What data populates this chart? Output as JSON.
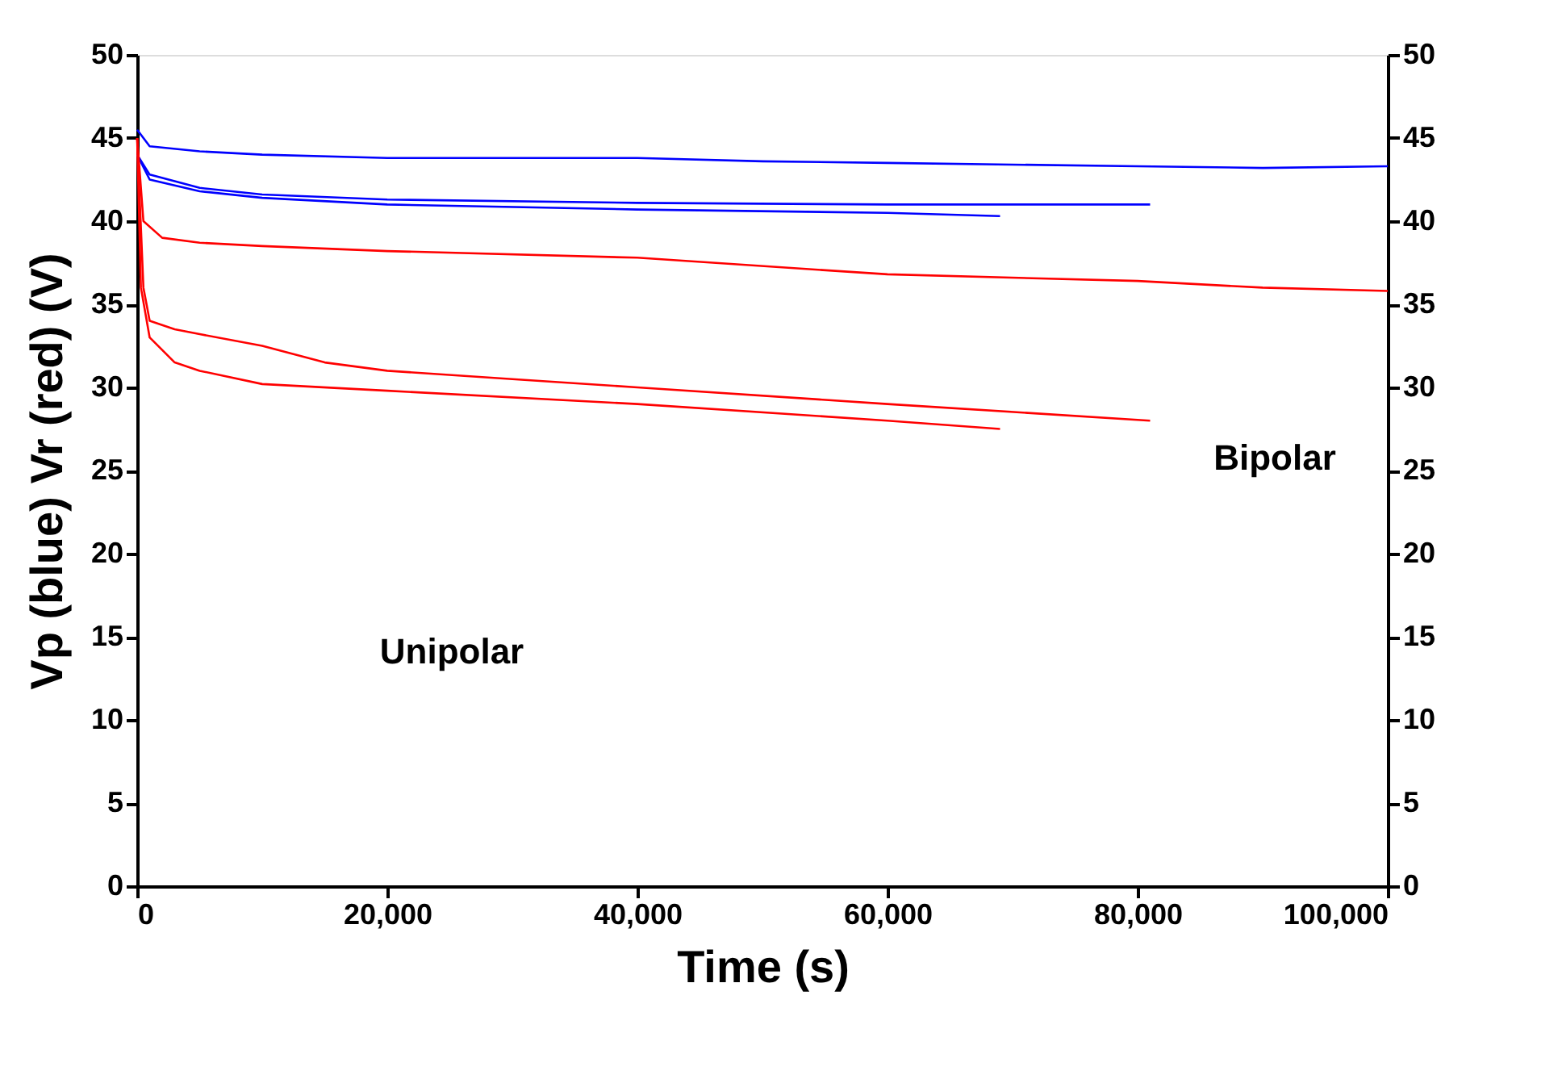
{
  "chart_data": {
    "type": "line",
    "xlabel": "Time (s)",
    "ylabel": "Vp (blue) Vr (red) (V)",
    "xlim": [
      0,
      100000
    ],
    "xticks": [
      0,
      {
        "value": 20000,
        "label": "20,000"
      },
      {
        "value": 40000,
        "label": "40,000"
      },
      {
        "value": 60000,
        "label": "60,000"
      },
      {
        "value": 80000,
        "label": "80,000"
      },
      {
        "value": 100000,
        "label": "100,000"
      }
    ],
    "ylim": [
      0,
      50
    ],
    "yticks": [
      0,
      5,
      10,
      15,
      20,
      25,
      30,
      35,
      40,
      45,
      50
    ],
    "y2lim": [
      0,
      50
    ],
    "y2ticks": [
      0,
      5,
      10,
      15,
      20,
      25,
      30,
      35,
      40,
      45,
      50
    ],
    "grid": false,
    "marker": "none",
    "line_style": "solid",
    "series": [
      {
        "color": "#0000ff",
        "x": [
          0,
          1000,
          5000,
          10000,
          20000,
          30000,
          40000,
          50000,
          60000,
          70000,
          80000,
          90000,
          100000
        ],
        "values": [
          45.5,
          44.5,
          44.2,
          44,
          43.8,
          43.8,
          43.8,
          43.6,
          43.5,
          43.4,
          43.3,
          43.2,
          43.3
        ]
      },
      {
        "color": "#0000ff",
        "x": [
          0,
          1000,
          5000,
          10000,
          20000,
          40000,
          60000,
          70000,
          81000
        ],
        "values": [
          44,
          42.8,
          42,
          41.6,
          41.3,
          41.1,
          41,
          41,
          41
        ]
      },
      {
        "color": "#0000ff",
        "x": [
          0,
          1000,
          5000,
          10000,
          20000,
          40000,
          60000,
          69000
        ],
        "values": [
          44,
          42.5,
          41.8,
          41.4,
          41,
          40.7,
          40.5,
          40.3
        ]
      },
      {
        "color": "#ff0000",
        "x": [
          0,
          500,
          2000,
          5000,
          10000,
          20000,
          40000,
          60000,
          80000,
          90000,
          100000
        ],
        "values": [
          45,
          40,
          39,
          38.7,
          38.5,
          38.2,
          37.8,
          36.8,
          36.4,
          36,
          35.8
        ]
      },
      {
        "color": "#ff0000",
        "x": [
          0,
          500,
          1000,
          3000,
          5000,
          10000,
          15000,
          20000,
          30000,
          40000,
          60000,
          81000
        ],
        "values": [
          45,
          36,
          34,
          33.5,
          33.2,
          32.5,
          31.5,
          31,
          30.5,
          30,
          29,
          28
        ]
      },
      {
        "color": "#ff0000",
        "x": [
          0,
          300,
          1000,
          3000,
          5000,
          10000,
          20000,
          40000,
          60000,
          69000
        ],
        "values": [
          45,
          36,
          33,
          31.5,
          31,
          30.2,
          29.8,
          29,
          28,
          27.5
        ]
      }
    ],
    "annotations": [
      "Unipolar",
      "Bipolar"
    ]
  }
}
